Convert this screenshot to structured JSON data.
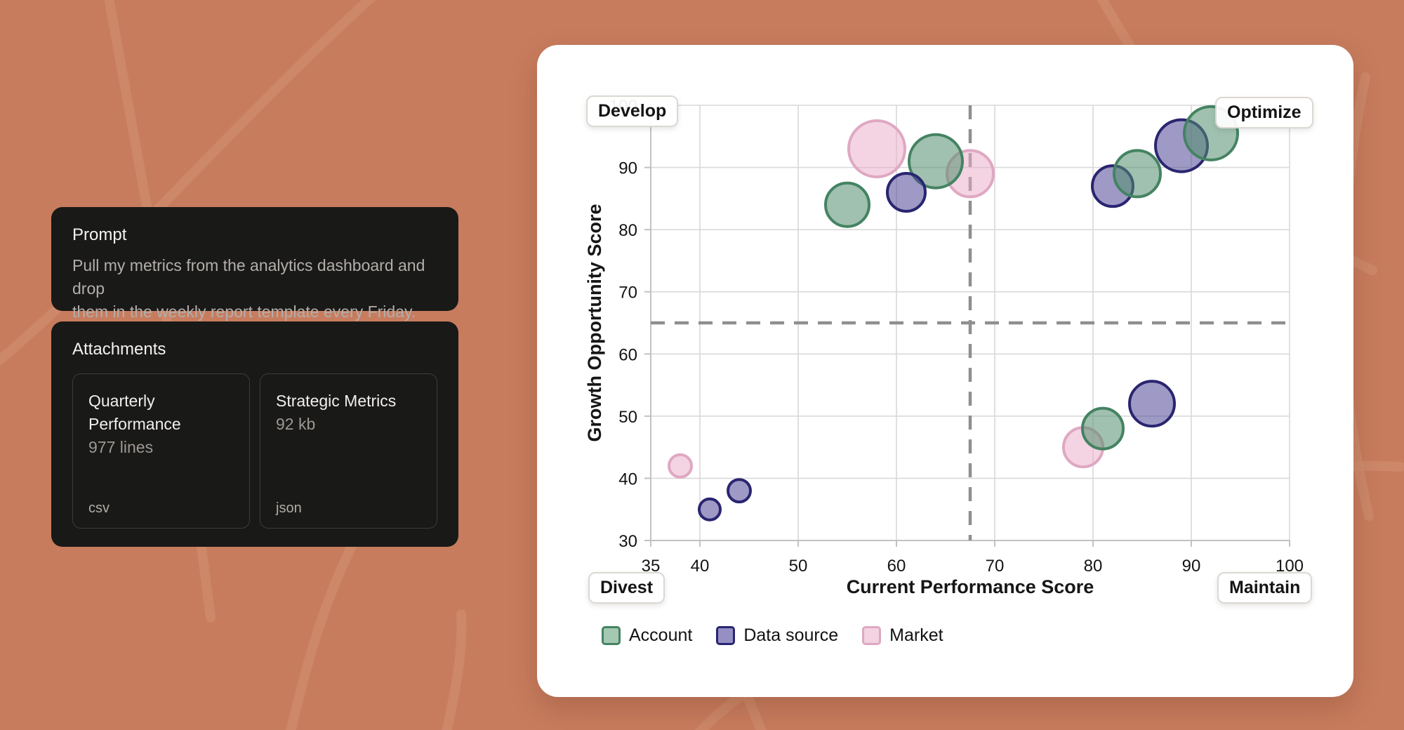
{
  "background": {
    "color": "#c87c5e",
    "decor_line_color": "#d28f72"
  },
  "prompt_panel": {
    "title": "Prompt",
    "body": "Pull my metrics from the analytics dashboard and drop\nthem in the weekly report template every Friday."
  },
  "attachments_panel": {
    "title": "Attachments",
    "items": [
      {
        "name": "Quarterly Performance",
        "detail": "977 lines",
        "type": "csv"
      },
      {
        "name": "Strategic Metrics",
        "detail": "92 kb",
        "type": "json"
      }
    ]
  },
  "chart_data": {
    "type": "scatter",
    "variant": "bubble-quadrant",
    "xlabel": "Current Performance Score",
    "ylabel": "Growth Opportunity Score",
    "xlim": [
      35,
      100
    ],
    "ylim": [
      30,
      100
    ],
    "x_ticks": [
      35,
      40,
      50,
      60,
      70,
      80,
      90,
      100
    ],
    "y_ticks": [
      30,
      40,
      50,
      60,
      70,
      80,
      90,
      100
    ],
    "grid": true,
    "quadrant_labels": {
      "top_left": "Develop",
      "top_right": "Optimize",
      "bottom_left": "Divest",
      "bottom_right": "Maintain"
    },
    "quadrant_dividers": {
      "x": 67.5,
      "y": 65
    },
    "legend": [
      "Account",
      "Data source",
      "Market"
    ],
    "legend_position": "bottom-left",
    "series_styles": {
      "Account": {
        "fill": "rgba(82,142,110,0.55)",
        "stroke": "#448362",
        "swatch_fill": "#a4c8b2"
      },
      "Data source": {
        "fill": "rgba(78,71,150,0.55)",
        "stroke": "#2a2570",
        "swatch_fill": "#958fc4"
      },
      "Market": {
        "fill": "rgba(233,169,200,0.50)",
        "stroke": "#dfa8c2",
        "swatch_fill": "#f3d2e1"
      }
    },
    "colors": {
      "grid": "#d9d9d9",
      "axis": "#c2c2c2",
      "divider": "#8f8f8f",
      "tick_label": "#141414"
    },
    "points": [
      {
        "series": "Market",
        "x": 58,
        "y": 93,
        "r": 40
      },
      {
        "series": "Market",
        "x": 67.5,
        "y": 89,
        "r": 33
      },
      {
        "series": "Account",
        "x": 64,
        "y": 91,
        "r": 38
      },
      {
        "series": "Account",
        "x": 55,
        "y": 84,
        "r": 31
      },
      {
        "series": "Data source",
        "x": 61,
        "y": 86,
        "r": 27
      },
      {
        "series": "Data source",
        "x": 82,
        "y": 87,
        "r": 29
      },
      {
        "series": "Account",
        "x": 84.5,
        "y": 89,
        "r": 33
      },
      {
        "series": "Data source",
        "x": 89,
        "y": 93.5,
        "r": 37
      },
      {
        "series": "Account",
        "x": 92,
        "y": 95.5,
        "r": 38
      },
      {
        "series": "Market",
        "x": 79,
        "y": 45,
        "r": 28
      },
      {
        "series": "Account",
        "x": 81,
        "y": 48,
        "r": 29
      },
      {
        "series": "Data source",
        "x": 86,
        "y": 52,
        "r": 32
      },
      {
        "series": "Market",
        "x": 38,
        "y": 42,
        "r": 16
      },
      {
        "series": "Data source",
        "x": 41,
        "y": 35,
        "r": 15
      },
      {
        "series": "Data source",
        "x": 44,
        "y": 38,
        "r": 16
      }
    ]
  }
}
